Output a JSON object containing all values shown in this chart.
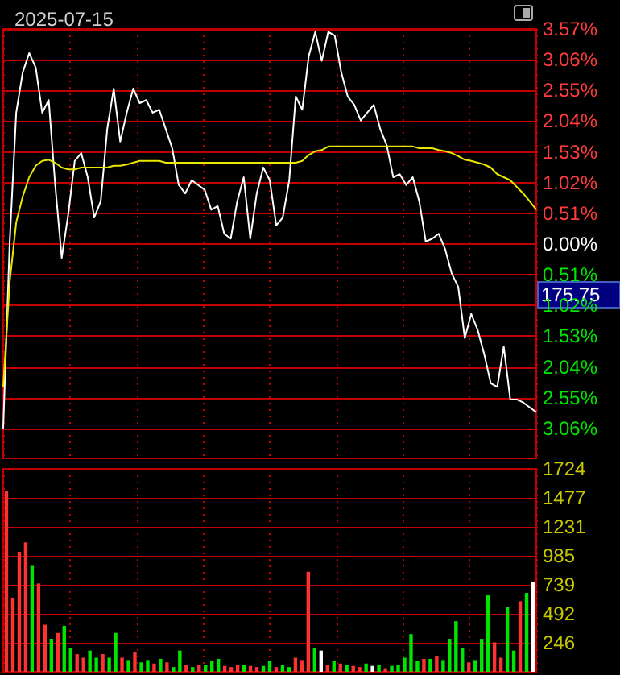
{
  "chart_data": [
    {
      "type": "line",
      "title": "2025-07-15",
      "categories": [
        null,
        null,
        null,
        null,
        null,
        null,
        null,
        null,
        null,
        null,
        null,
        null,
        null,
        null,
        null,
        null,
        null,
        null,
        null,
        null,
        null,
        null,
        null,
        null,
        null,
        null,
        null,
        null,
        null,
        null,
        null,
        null,
        null,
        null,
        null,
        null,
        null,
        null,
        null,
        null,
        null,
        null,
        null,
        null,
        null,
        null,
        null,
        null,
        null,
        null,
        null,
        null,
        null,
        null,
        null,
        null,
        null,
        null,
        null,
        null,
        null,
        null,
        null,
        null,
        null,
        null,
        null,
        null,
        null,
        null,
        null,
        null,
        null,
        null,
        null,
        null,
        null,
        null,
        null,
        null,
        null,
        null,
        null
      ],
      "series": [
        {
          "color": "#ffffff",
          "values": [
            -3.06,
            0.04,
            2.18,
            2.85,
            3.17,
            2.93,
            2.18,
            2.39,
            0.98,
            -0.23,
            0.49,
            1.38,
            1.51,
            1.11,
            0.44,
            0.71,
            1.91,
            2.58,
            1.7,
            2.18,
            2.58,
            2.34,
            2.39,
            2.18,
            2.23,
            1.91,
            1.59,
            0.98,
            0.84,
            1.06,
            0.98,
            0.9,
            0.57,
            0.63,
            0.17,
            0.09,
            0.71,
            1.11,
            0.09,
            0.84,
            1.27,
            1.06,
            0.31,
            0.44,
            1.06,
            2.45,
            2.23,
            3.12,
            3.52,
            3.04,
            3.52,
            3.46,
            2.85,
            2.45,
            2.31,
            2.05,
            2.18,
            2.31,
            1.91,
            1.64,
            1.11,
            1.16,
            0.98,
            1.11,
            0.71,
            0.04,
            0.09,
            0.17,
            -0.09,
            -0.49,
            -0.71,
            -1.56,
            -1.16,
            -1.43,
            -1.83,
            -2.31,
            -2.37,
            -1.7,
            -2.58,
            -2.58,
            -2.63,
            -2.71,
            -2.79
          ]
        },
        {
          "color": "#e8e800",
          "values": [
            -2.37,
            -0.63,
            0.36,
            0.79,
            1.11,
            1.3,
            1.38,
            1.4,
            1.35,
            1.27,
            1.24,
            1.24,
            1.27,
            1.27,
            1.27,
            1.27,
            1.27,
            1.3,
            1.3,
            1.32,
            1.35,
            1.38,
            1.38,
            1.38,
            1.38,
            1.35,
            1.35,
            1.35,
            1.35,
            1.35,
            1.35,
            1.35,
            1.35,
            1.35,
            1.35,
            1.35,
            1.35,
            1.35,
            1.35,
            1.35,
            1.35,
            1.35,
            1.35,
            1.35,
            1.35,
            1.35,
            1.38,
            1.48,
            1.54,
            1.56,
            1.62,
            1.62,
            1.62,
            1.62,
            1.62,
            1.62,
            1.62,
            1.62,
            1.62,
            1.62,
            1.62,
            1.62,
            1.62,
            1.62,
            1.59,
            1.59,
            1.59,
            1.56,
            1.54,
            1.51,
            1.46,
            1.4,
            1.38,
            1.35,
            1.32,
            1.27,
            1.16,
            1.11,
            1.06,
            0.95,
            0.84,
            0.71,
            0.57
          ]
        }
      ],
      "ylim": [
        -3.57,
        3.57
      ],
      "yticks": [
        {
          "value": 3.57,
          "label": "3.57%"
        },
        {
          "value": 3.06,
          "label": "3.06%"
        },
        {
          "value": 2.55,
          "label": "2.55%"
        },
        {
          "value": 2.04,
          "label": "2.04%"
        },
        {
          "value": 1.53,
          "label": "1.53%"
        },
        {
          "value": 1.02,
          "label": "1.02%"
        },
        {
          "value": 0.51,
          "label": "0.51%"
        },
        {
          "value": 0,
          "label": "0.00%"
        },
        {
          "value": -0.51,
          "label": "0.51%"
        },
        {
          "value": -1.02,
          "label": "1.02%"
        },
        {
          "value": -1.53,
          "label": "1.53%"
        },
        {
          "value": -2.04,
          "label": "2.04%"
        },
        {
          "value": -2.55,
          "label": "2.55%"
        },
        {
          "value": -3.06,
          "label": "3.06%"
        }
      ],
      "annotations": [
        "175.75"
      ],
      "grid": true,
      "tick_labels": "y"
    },
    {
      "type": "bar",
      "categories": [
        null,
        null,
        null,
        null,
        null,
        null,
        null,
        null,
        null,
        null,
        null,
        null,
        null,
        null,
        null,
        null,
        null,
        null,
        null,
        null,
        null,
        null,
        null,
        null,
        null,
        null,
        null,
        null,
        null,
        null,
        null,
        null,
        null,
        null,
        null,
        null,
        null,
        null,
        null,
        null,
        null,
        null,
        null,
        null,
        null,
        null,
        null,
        null,
        null,
        null,
        null,
        null,
        null,
        null,
        null,
        null,
        null,
        null,
        null,
        null,
        null,
        null,
        null,
        null,
        null,
        null,
        null,
        null,
        null,
        null,
        null,
        null,
        null,
        null,
        null,
        null,
        null,
        null,
        null,
        null,
        null,
        null,
        null
      ],
      "values": [
        1540,
        630,
        1020,
        1100,
        900,
        750,
        400,
        280,
        330,
        390,
        200,
        150,
        120,
        180,
        120,
        150,
        120,
        330,
        120,
        100,
        170,
        80,
        100,
        70,
        110,
        80,
        40,
        180,
        60,
        40,
        60,
        60,
        90,
        110,
        50,
        40,
        60,
        60,
        50,
        40,
        50,
        90,
        40,
        60,
        40,
        120,
        100,
        850,
        200,
        180,
        60,
        90,
        70,
        60,
        50,
        40,
        70,
        50,
        60,
        30,
        50,
        60,
        120,
        320,
        90,
        110,
        110,
        130,
        100,
        280,
        430,
        200,
        80,
        100,
        280,
        650,
        250,
        120,
        550,
        180,
        600,
        670,
        760
      ],
      "colors": [
        "#ff3232",
        "#ff3232",
        "#ff3232",
        "#ff3232",
        "#00e600",
        "#ff3232",
        "#ff3232",
        "#00e600",
        "#ff3232",
        "#00e600",
        "#00e600",
        "#ff3232",
        "#ff3232",
        "#00e600",
        "#00e600",
        "#ff3232",
        "#00e600",
        "#00e600",
        "#ff3232",
        "#00e600",
        "#ff3232",
        "#00e600",
        "#00e600",
        "#ff3232",
        "#00e600",
        "#ff3232",
        "#00e600",
        "#00e600",
        "#ff3232",
        "#00e600",
        "#ff3232",
        "#00e600",
        "#00e600",
        "#00e600",
        "#ff3232",
        "#ff3232",
        "#ff3232",
        "#00e600",
        "#ff3232",
        "#ff3232",
        "#00e600",
        "#00e600",
        "#ff3232",
        "#00e600",
        "#00e600",
        "#ff3232",
        "#ff3232",
        "#ff3232",
        "#00e600",
        "#ffffff",
        "#ff3232",
        "#00e600",
        "#ff3232",
        "#00e600",
        "#ff3232",
        "#ff3232",
        "#00e600",
        "#ffffff",
        "#00e600",
        "#ff3232",
        "#00e600",
        "#00e600",
        "#00e600",
        "#00e600",
        "#00e600",
        "#ff3232",
        "#00e600",
        "#ff3232",
        "#00e600",
        "#00e600",
        "#00e600",
        "#00e600",
        "#ff3232",
        "#00e600",
        "#00e600",
        "#00e600",
        "#ff3232",
        "#ff3232",
        "#00e600",
        "#00e600",
        "#ff3232",
        "#00e600",
        "#ffffff"
      ],
      "ylim": [
        0,
        1724
      ],
      "yticks": [
        246,
        492,
        739,
        985,
        1231,
        1477,
        1724
      ],
      "grid": true,
      "tick_labels": "y"
    }
  ]
}
